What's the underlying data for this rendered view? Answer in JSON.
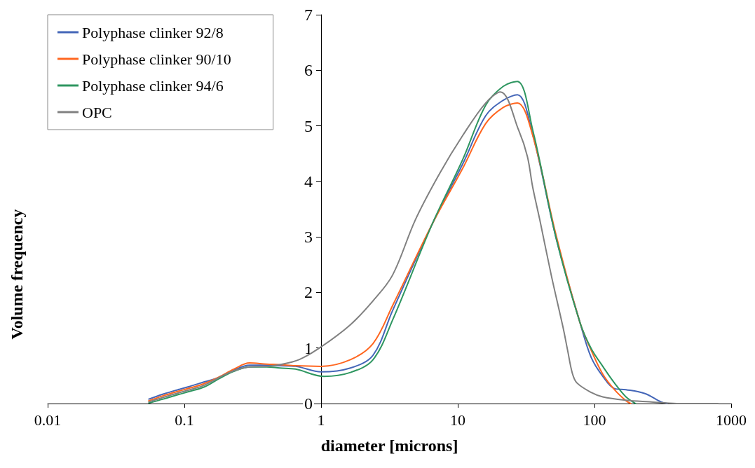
{
  "chart_data": {
    "type": "line",
    "xlabel": "diameter [microns]",
    "ylabel": "Volume frequency",
    "log": "x",
    "xlim": [
      0.01,
      1000
    ],
    "xticks": [
      0.01,
      0.1,
      1,
      10,
      100,
      1000
    ],
    "ylim": [
      0,
      7
    ],
    "yticks": [
      0,
      1,
      2,
      3,
      4,
      5,
      6,
      7
    ],
    "legend": "top left",
    "grid": false,
    "marker": "none",
    "line_style": "solid",
    "series": [
      {
        "name": "Polyphase clinker 92/8",
        "color": "#4466b8",
        "x": [
          0.055,
          0.07,
          0.09,
          0.11,
          0.14,
          0.18,
          0.23,
          0.3,
          0.4,
          0.5,
          0.65,
          1,
          1.64,
          2.4,
          3.33,
          6.5,
          10.9,
          16,
          21.5,
          27.3,
          35.3,
          52.4,
          78.3,
          94.6,
          115,
          140,
          170,
          234,
          307,
          340
        ],
        "values": [
          0.08,
          0.17,
          0.25,
          0.31,
          0.39,
          0.47,
          0.6,
          0.69,
          0.69,
          0.68,
          0.67,
          0.57,
          0.64,
          0.87,
          1.67,
          3.23,
          4.32,
          5.18,
          5.46,
          5.56,
          4.85,
          2.98,
          1.46,
          0.83,
          0.49,
          0.27,
          0.25,
          0.18,
          0.03,
          0
        ]
      },
      {
        "name": "Polyphase clinker 90/10",
        "color": "#ff6620",
        "x": [
          0.055,
          0.07,
          0.09,
          0.11,
          0.14,
          0.18,
          0.23,
          0.3,
          0.4,
          0.5,
          0.65,
          1,
          1.64,
          2.4,
          3.33,
          6.5,
          10.9,
          16,
          21.5,
          27.3,
          35.3,
          52.4,
          78.3,
          94.6,
          115,
          140,
          170,
          184
        ],
        "values": [
          0.05,
          0.14,
          0.22,
          0.28,
          0.36,
          0.48,
          0.62,
          0.73,
          0.71,
          0.7,
          0.68,
          0.67,
          0.79,
          1.08,
          1.76,
          3.23,
          4.24,
          5.04,
          5.33,
          5.41,
          4.83,
          3.03,
          1.46,
          0.96,
          0.53,
          0.25,
          0.05,
          0
        ]
      },
      {
        "name": "Polyphase clinker 94/6",
        "color": "#2e9660",
        "x": [
          0.055,
          0.07,
          0.09,
          0.11,
          0.14,
          0.18,
          0.23,
          0.3,
          0.4,
          0.5,
          0.65,
          1.05,
          1.64,
          2.4,
          3.33,
          6.5,
          10.9,
          16,
          21.5,
          27.3,
          35.3,
          52.4,
          78.3,
          94.6,
          115,
          140,
          170,
          200
        ],
        "values": [
          0.01,
          0.08,
          0.16,
          0.22,
          0.3,
          0.45,
          0.58,
          0.66,
          0.66,
          0.64,
          0.62,
          0.49,
          0.56,
          0.79,
          1.5,
          3.23,
          4.4,
          5.37,
          5.71,
          5.8,
          4.93,
          2.98,
          1.46,
          0.99,
          0.67,
          0.37,
          0.12,
          0
        ]
      },
      {
        "name": "OPC",
        "color": "#808080",
        "x": [
          0.055,
          0.07,
          0.09,
          0.11,
          0.14,
          0.18,
          0.23,
          0.3,
          0.4,
          0.5,
          0.69,
          1,
          1.64,
          2.4,
          3.33,
          4.9,
          7.4,
          10.9,
          16,
          20.5,
          28,
          32.3,
          35.3,
          39.8,
          48.4,
          58.8,
          63.6,
          69,
          74.5,
          94.6,
          115,
          170,
          253,
          400,
          800
        ],
        "values": [
          0.03,
          0.11,
          0.19,
          0.25,
          0.33,
          0.47,
          0.59,
          0.66,
          0.67,
          0.7,
          0.79,
          1.02,
          1.42,
          1.85,
          2.31,
          3.31,
          4.15,
          4.83,
          5.41,
          5.61,
          4.91,
          4.45,
          3.9,
          3.31,
          2.3,
          1.38,
          0.96,
          0.54,
          0.37,
          0.2,
          0.12,
          0.06,
          0.03,
          0,
          0
        ]
      }
    ]
  }
}
